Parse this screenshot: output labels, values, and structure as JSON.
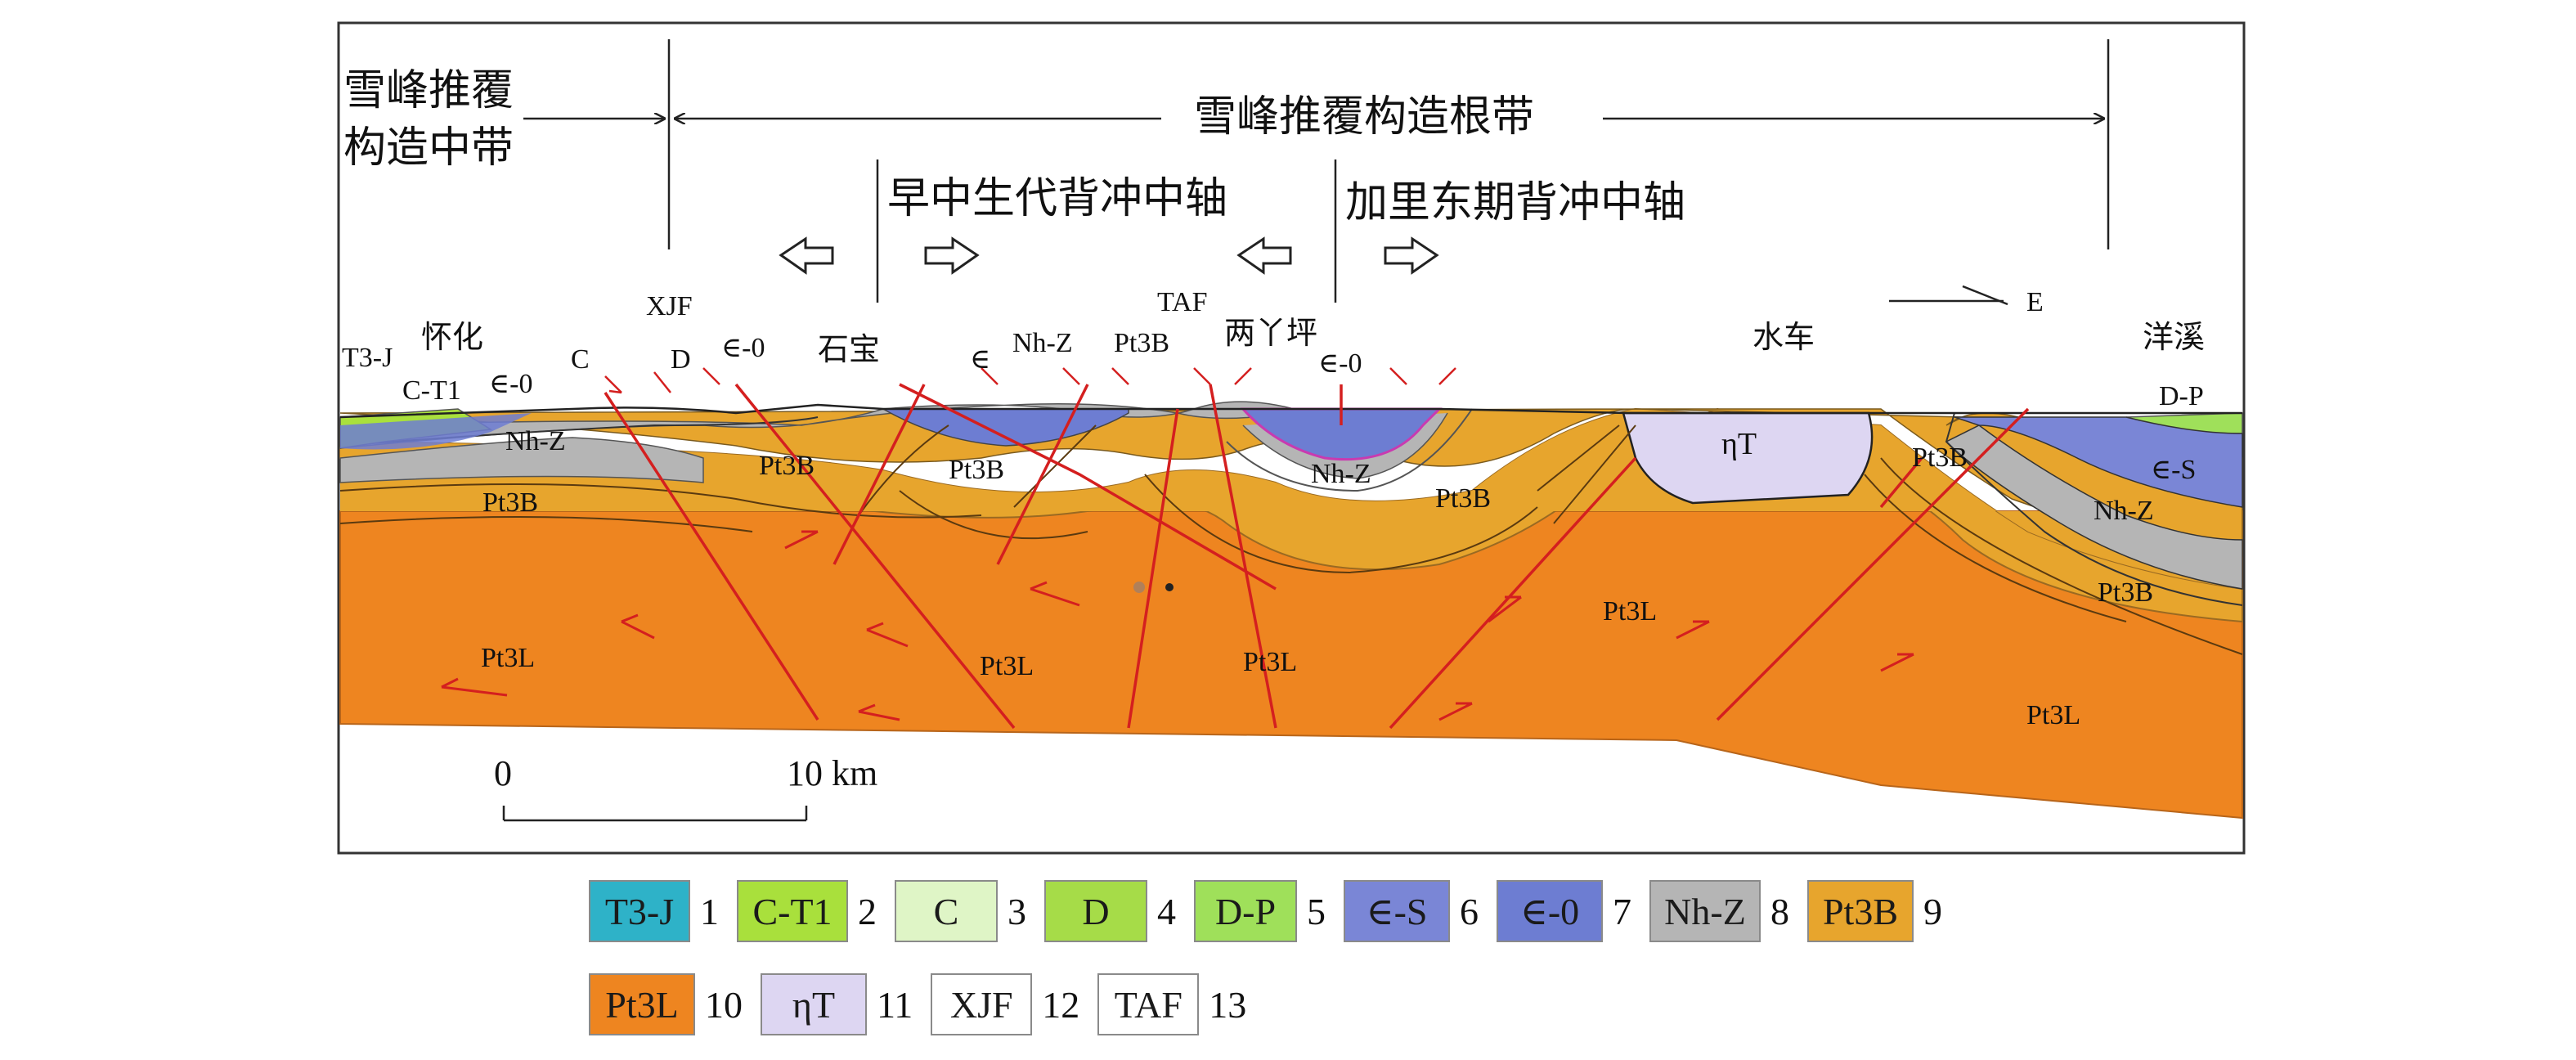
{
  "header": {
    "middle_belt_line1": "雪峰推覆",
    "middle_belt_line2": "构造中带",
    "root_belt": "雪峰推覆构造根带",
    "axis_early": "早中生代背冲中轴",
    "axis_caledonian": "加里东期背冲中轴"
  },
  "places": {
    "huaihua": "怀化",
    "shibao": "石宝",
    "liangyaping": "两丫坪",
    "shuiche": "水车",
    "yangxi": "洋溪"
  },
  "faults": {
    "xjf": "XJF",
    "taf": "TAF"
  },
  "direction": "E",
  "strata_labels": {
    "t3j": "T3-J",
    "ct1": "C-T1",
    "e0_left": "∈-0",
    "c": "C",
    "d": "D",
    "e0_mid": "∈-0",
    "e_mid": "∈",
    "nhz_mid": "Nh-Z",
    "pt3b_taf": "Pt3B",
    "e0_right": "∈-0",
    "dp": "D-P",
    "nhz_left": "Nh-Z",
    "pt3b_left": "Pt3B",
    "pt3b_a": "Pt3B",
    "pt3b_b": "Pt3B",
    "nhz_c": "Nh-Z",
    "pt3b_c": "Pt3B",
    "eta_t": "ηT",
    "pt3b_right": "Pt3B",
    "es_right": "∈-S",
    "nhz_right": "Nh-Z",
    "pt3b_right2": "Pt3B",
    "pt3l_1": "Pt3L",
    "pt3l_2": "Pt3L",
    "pt3l_3": "Pt3L",
    "pt3l_4": "Pt3L",
    "pt3l_5": "Pt3L"
  },
  "scale": {
    "zero": "0",
    "ten": "10 km"
  },
  "legend": [
    {
      "code": "T3-J",
      "num": "1",
      "color": "#2eb2c8"
    },
    {
      "code": "C-T1",
      "num": "2",
      "color": "#a9e03c"
    },
    {
      "code": "C",
      "num": "3",
      "color": "#dff5c6"
    },
    {
      "code": "D",
      "num": "4",
      "color": "#a6dc48"
    },
    {
      "code": "D-P",
      "num": "5",
      "color": "#9fe05a"
    },
    {
      "code": "∈-S",
      "num": "6",
      "color": "#7a86d6"
    },
    {
      "code": "∈-0",
      "num": "7",
      "color": "#6d7dd2"
    },
    {
      "code": "Nh-Z",
      "num": "8",
      "color": "#b5b5b5"
    },
    {
      "code": "Pt3B",
      "num": "9",
      "color": "#e7a52d"
    },
    {
      "code": "Pt3L",
      "num": "10",
      "color": "#ee8520"
    },
    {
      "code": "ηT",
      "num": "11",
      "color": "#ddd6f2"
    },
    {
      "code": "XJF",
      "num": "12",
      "color": "#ffffff"
    },
    {
      "code": "TAF",
      "num": "13",
      "color": "#ffffff"
    }
  ]
}
